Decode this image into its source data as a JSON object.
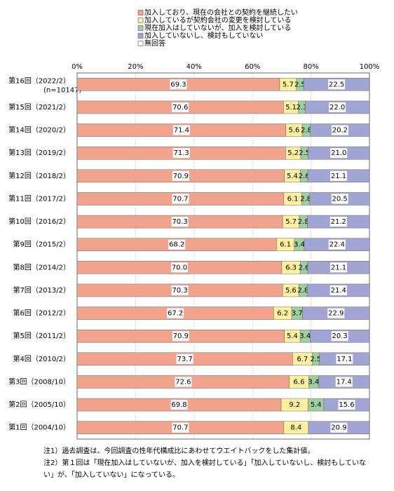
{
  "chart_data": {
    "type": "stacked-bar-horizontal",
    "categories": [
      "第16回（2022/2）",
      "第15回（2021/2）",
      "第14回（2020/2）",
      "第13回（2019/2）",
      "第12回（2018/2）",
      "第11回（2017/2）",
      "第10回（2016/2）",
      "第9回（2015/2）",
      "第8回（2014/2）",
      "第7回（2013/2）",
      "第6回（2012/2）",
      "第5回（2011/2）",
      "第4回（2010/2）",
      "第3回（2008/10）",
      "第2回（2005/10）",
      "第1回（2004/10）"
    ],
    "category_note": "(n=10147)",
    "xlim": [
      0,
      100
    ],
    "xticks": [
      {
        "value": 0,
        "label": "0%"
      },
      {
        "value": 20,
        "label": "20%"
      },
      {
        "value": 40,
        "label": "40%"
      },
      {
        "value": 60,
        "label": "60%"
      },
      {
        "value": 80,
        "label": "80%"
      },
      {
        "value": 100,
        "label": "100%"
      }
    ],
    "grid": true,
    "legend": "top",
    "series": [
      {
        "name": "加入しており、現在の会社との契約を継続したい",
        "color": "#f2a38d",
        "values": [
          69.3,
          70.6,
          71.4,
          71.3,
          70.9,
          70.7,
          70.3,
          68.2,
          70.0,
          70.3,
          67.2,
          70.9,
          73.7,
          72.6,
          69.8,
          70.7
        ],
        "value_labels": [
          "69.3",
          "70.6",
          "71.4",
          "71.3",
          "70.9",
          "70.7",
          "70.3",
          "68.2",
          "70.0",
          "70.3",
          "67.2",
          "70.9",
          "73.7",
          "72.6",
          "69.8",
          "70.7"
        ]
      },
      {
        "name": "加入しているが契約会社の変更を検討している",
        "color": "#fff09e",
        "values": [
          5.7,
          5.1,
          5.6,
          5.2,
          5.4,
          6.1,
          5.7,
          6.1,
          6.3,
          5.6,
          6.2,
          5.4,
          6.7,
          6.6,
          9.2,
          8.4
        ],
        "value_labels": [
          "5.7",
          "5.1",
          "5.6",
          "5.2",
          "5.4",
          "6.1",
          "5.7",
          "6.1",
          "6.3",
          "5.6",
          "6.2",
          "5.4",
          "6.7",
          "6.6",
          "9.2",
          "8.4"
        ]
      },
      {
        "name": "現在加入はしていないが、加入を検討している",
        "color": "#9fcf9f",
        "values": [
          2.5,
          2.3,
          2.8,
          2.5,
          2.6,
          2.8,
          2.8,
          3.4,
          2.6,
          2.8,
          3.7,
          3.4,
          2.5,
          3.4,
          5.4,
          null
        ],
        "value_labels": [
          "2.5",
          "2.3",
          "2.8",
          "2.5",
          "2.6",
          "2.8",
          "2.8",
          "3.4",
          "2.6",
          "2.8",
          "3.7",
          "3.4",
          "2.5",
          "3.4",
          "5.4",
          null
        ]
      },
      {
        "name": "加入していないし、検討もしていない",
        "color": "#a1a5d3",
        "values": [
          22.5,
          22.0,
          20.2,
          21.0,
          21.1,
          20.5,
          21.2,
          22.4,
          21.1,
          21.4,
          22.9,
          20.3,
          17.1,
          17.4,
          15.6,
          20.9
        ],
        "value_labels": [
          "22.5",
          "22.0",
          "20.2",
          "21.0",
          "21.1",
          "20.5",
          "21.2",
          "22.4",
          "21.1",
          "21.4",
          "22.9",
          "20.3",
          "17.1",
          "17.4",
          "15.6",
          "20.9"
        ]
      },
      {
        "name": "無回答",
        "color": "#ffffff",
        "values": [
          0,
          0,
          0,
          0,
          0,
          0,
          0,
          0,
          0,
          0,
          0,
          0,
          0,
          0,
          0,
          0
        ]
      }
    ],
    "notes": [
      "注1）過去調査は、今回調査の性年代構成比にあわせてウエイトバックをした集計値。",
      "注2）第１回は「現在加入はしていないが、加入を検討している」「加入していないし、検討もしていな",
      "い」が、「加入していない」になっている。"
    ]
  }
}
